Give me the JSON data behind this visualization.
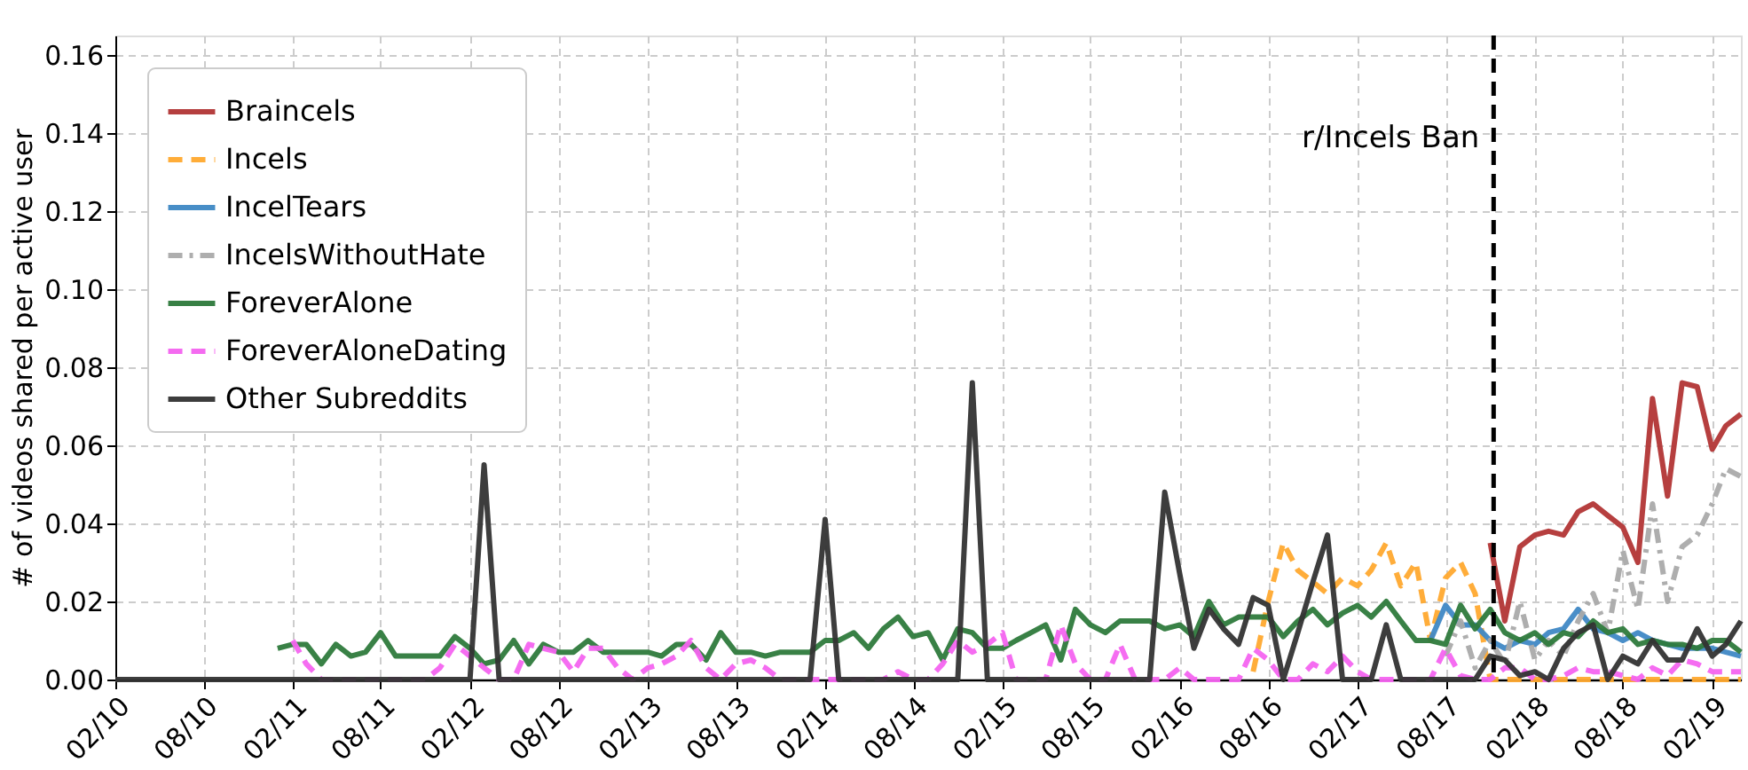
{
  "chart_data": {
    "type": "line",
    "ylabel": "# of videos shared per active user",
    "x": [
      "2010-02",
      "2010-03",
      "2010-04",
      "2010-05",
      "2010-06",
      "2010-07",
      "2010-08",
      "2010-09",
      "2010-10",
      "2010-11",
      "2010-12",
      "2011-01",
      "2011-02",
      "2011-03",
      "2011-04",
      "2011-05",
      "2011-06",
      "2011-07",
      "2011-08",
      "2011-09",
      "2011-10",
      "2011-11",
      "2011-12",
      "2012-01",
      "2012-02",
      "2012-03",
      "2012-04",
      "2012-05",
      "2012-06",
      "2012-07",
      "2012-08",
      "2012-09",
      "2012-10",
      "2012-11",
      "2012-12",
      "2013-01",
      "2013-02",
      "2013-03",
      "2013-04",
      "2013-05",
      "2013-06",
      "2013-07",
      "2013-08",
      "2013-09",
      "2013-10",
      "2013-11",
      "2013-12",
      "2014-01",
      "2014-02",
      "2014-03",
      "2014-04",
      "2014-05",
      "2014-06",
      "2014-07",
      "2014-08",
      "2014-09",
      "2014-10",
      "2014-11",
      "2014-12",
      "2015-01",
      "2015-02",
      "2015-03",
      "2015-04",
      "2015-05",
      "2015-06",
      "2015-07",
      "2015-08",
      "2015-09",
      "2015-10",
      "2015-11",
      "2015-12",
      "2016-01",
      "2016-02",
      "2016-03",
      "2016-04",
      "2016-05",
      "2016-06",
      "2016-07",
      "2016-08",
      "2016-09",
      "2016-10",
      "2016-11",
      "2016-12",
      "2017-01",
      "2017-02",
      "2017-03",
      "2017-04",
      "2017-05",
      "2017-06",
      "2017-07",
      "2017-08",
      "2017-09",
      "2017-10",
      "2017-11",
      "2017-12",
      "2018-01",
      "2018-02",
      "2018-03",
      "2018-04",
      "2018-05",
      "2018-06",
      "2018-07",
      "2018-08",
      "2018-09",
      "2018-10",
      "2018-11",
      "2018-12",
      "2019-01",
      "2019-02",
      "2019-03",
      "2019-04"
    ],
    "series": [
      {
        "name": "Braincels",
        "color": "#b23535",
        "line_style": "solid",
        "values": [
          null,
          null,
          null,
          null,
          null,
          null,
          null,
          null,
          null,
          null,
          null,
          null,
          null,
          null,
          null,
          null,
          null,
          null,
          null,
          null,
          null,
          null,
          null,
          null,
          null,
          null,
          null,
          null,
          null,
          null,
          null,
          null,
          null,
          null,
          null,
          null,
          null,
          null,
          null,
          null,
          null,
          null,
          null,
          null,
          null,
          null,
          null,
          null,
          null,
          null,
          null,
          null,
          null,
          null,
          null,
          null,
          null,
          null,
          null,
          null,
          null,
          null,
          null,
          null,
          null,
          null,
          null,
          null,
          null,
          null,
          null,
          null,
          null,
          null,
          null,
          null,
          null,
          null,
          null,
          null,
          null,
          null,
          null,
          null,
          null,
          null,
          null,
          null,
          null,
          null,
          null,
          null,
          null,
          0.035,
          0.015,
          0.034,
          0.037,
          0.038,
          0.037,
          0.043,
          0.045,
          0.042,
          0.039,
          0.03,
          0.072,
          0.047,
          0.076,
          0.075,
          0.059,
          0.065,
          0.068
        ]
      },
      {
        "name": "Incels",
        "color": "#ffa92f",
        "line_style": "dashed",
        "values": [
          null,
          null,
          null,
          null,
          null,
          null,
          null,
          null,
          null,
          null,
          null,
          null,
          null,
          null,
          null,
          null,
          null,
          null,
          null,
          null,
          null,
          null,
          null,
          null,
          null,
          null,
          null,
          null,
          null,
          null,
          null,
          null,
          null,
          null,
          null,
          null,
          null,
          null,
          null,
          null,
          null,
          null,
          null,
          null,
          null,
          null,
          null,
          null,
          null,
          null,
          null,
          null,
          null,
          null,
          null,
          null,
          null,
          null,
          null,
          null,
          null,
          null,
          null,
          null,
          null,
          null,
          null,
          null,
          null,
          null,
          null,
          null,
          null,
          null,
          null,
          null,
          null,
          0.002,
          0.02,
          0.035,
          0.028,
          0.025,
          0.022,
          0.026,
          0.024,
          0.028,
          0.035,
          0.024,
          0.03,
          0.01,
          0.026,
          0.03,
          0.022,
          0,
          0,
          0,
          0,
          0,
          0,
          0,
          0,
          0,
          0,
          0,
          0,
          0,
          0,
          0,
          0,
          0,
          0
        ]
      },
      {
        "name": "IncelTears",
        "color": "#3f88c5",
        "line_style": "solid",
        "values": [
          null,
          null,
          null,
          null,
          null,
          null,
          null,
          null,
          null,
          null,
          null,
          null,
          null,
          null,
          null,
          null,
          null,
          null,
          null,
          null,
          null,
          null,
          null,
          null,
          null,
          null,
          null,
          null,
          null,
          null,
          null,
          null,
          null,
          null,
          null,
          null,
          null,
          null,
          null,
          null,
          null,
          null,
          null,
          null,
          null,
          null,
          null,
          null,
          null,
          null,
          null,
          null,
          null,
          null,
          null,
          null,
          null,
          null,
          null,
          null,
          null,
          null,
          null,
          null,
          null,
          null,
          null,
          null,
          null,
          null,
          null,
          null,
          null,
          null,
          null,
          null,
          null,
          null,
          null,
          null,
          null,
          null,
          null,
          null,
          null,
          null,
          null,
          null,
          null,
          0.01,
          0.019,
          0.014,
          0.014,
          0.01,
          0.008,
          0.01,
          0.009,
          0.012,
          0.013,
          0.018,
          0.013,
          0.012,
          0.01,
          0.012,
          0.01,
          0.009,
          0.008,
          0.008,
          0.008,
          0.007,
          0.006
        ]
      },
      {
        "name": "IncelsWithoutHate",
        "color": "#aaaaaa",
        "line_style": "dashdot",
        "values": [
          null,
          null,
          null,
          null,
          null,
          null,
          null,
          null,
          null,
          null,
          null,
          null,
          null,
          null,
          null,
          null,
          null,
          null,
          null,
          null,
          null,
          null,
          null,
          null,
          null,
          null,
          null,
          null,
          null,
          null,
          null,
          null,
          null,
          null,
          null,
          null,
          null,
          null,
          null,
          null,
          null,
          null,
          null,
          null,
          null,
          null,
          null,
          null,
          null,
          null,
          null,
          null,
          null,
          null,
          null,
          null,
          null,
          null,
          null,
          null,
          null,
          null,
          null,
          null,
          null,
          null,
          null,
          null,
          null,
          null,
          null,
          null,
          null,
          null,
          null,
          null,
          null,
          null,
          null,
          null,
          null,
          null,
          null,
          null,
          null,
          null,
          null,
          null,
          null,
          null,
          0.006,
          0.015,
          0.003,
          0.01,
          0.004,
          0.02,
          0.005,
          0.01,
          0.006,
          0.015,
          0.022,
          0.012,
          0.033,
          0.018,
          0.045,
          0.02,
          0.034,
          0.037,
          0.045,
          0.054,
          0.052
        ]
      },
      {
        "name": "ForeverAlone",
        "color": "#2e7a3c",
        "line_style": "solid",
        "values": [
          null,
          null,
          null,
          null,
          null,
          null,
          null,
          null,
          null,
          null,
          null,
          0.008,
          0.009,
          0.009,
          0.004,
          0.009,
          0.006,
          0.007,
          0.012,
          0.006,
          0.006,
          0.006,
          0.006,
          0.011,
          0.008,
          0.004,
          0.005,
          0.01,
          0.004,
          0.009,
          0.007,
          0.007,
          0.01,
          0.007,
          0.007,
          0.007,
          0.007,
          0.006,
          0.009,
          0.009,
          0.005,
          0.012,
          0.007,
          0.007,
          0.006,
          0.007,
          0.007,
          0.007,
          0.01,
          0.01,
          0.012,
          0.008,
          0.013,
          0.016,
          0.011,
          0.012,
          0.005,
          0.013,
          0.012,
          0.008,
          0.008,
          0.01,
          0.012,
          0.014,
          0.005,
          0.018,
          0.014,
          0.012,
          0.015,
          0.015,
          0.015,
          0.013,
          0.014,
          0.011,
          0.02,
          0.014,
          0.016,
          0.016,
          0.016,
          0.011,
          0.015,
          0.018,
          0.014,
          0.017,
          0.019,
          0.016,
          0.02,
          0.015,
          0.01,
          0.01,
          0.009,
          0.019,
          0.013,
          0.018,
          0.012,
          0.01,
          0.012,
          0.009,
          0.012,
          0.011,
          0.015,
          0.012,
          0.013,
          0.009,
          0.01,
          0.009,
          0.009,
          0.008,
          0.01,
          0.01,
          0.007
        ]
      },
      {
        "name": "ForeverAloneDating",
        "color": "#f464f0",
        "line_style": "dashed",
        "values": [
          null,
          null,
          null,
          null,
          null,
          null,
          null,
          null,
          null,
          null,
          null,
          null,
          0.01,
          0.004,
          0,
          0,
          0,
          0,
          0,
          0,
          0,
          0,
          0.003,
          0.009,
          0.006,
          0.003,
          0,
          0,
          0.009,
          0.008,
          0.007,
          0.002,
          0.008,
          0.008,
          0.003,
          0,
          0.003,
          0.004,
          0.006,
          0.01,
          0.003,
          0,
          0.004,
          0.005,
          0.003,
          0,
          0,
          0,
          0,
          0,
          0,
          0,
          0,
          0.002,
          0,
          0,
          0.004,
          0.01,
          0.007,
          0.009,
          0.012,
          0,
          0,
          0,
          0.014,
          0.004,
          0,
          0,
          0.009,
          0,
          0,
          0,
          0.003,
          0,
          0,
          0,
          0,
          0.008,
          0.005,
          0,
          0,
          0.004,
          0.002,
          0.006,
          0.002,
          0,
          0,
          0,
          0,
          0,
          0.008,
          0.001,
          0,
          0,
          0.003,
          0.003,
          0,
          0,
          0.001,
          0.003,
          0.002,
          0.002,
          0.001,
          0,
          0.003,
          0.001,
          0.005,
          0.004,
          0.002,
          0.002,
          0.002
        ]
      },
      {
        "name": "Other Subreddits",
        "color": "#333333",
        "line_style": "solid",
        "values": [
          0,
          0,
          0,
          0,
          0,
          0,
          0,
          0,
          0,
          0,
          0,
          0,
          0,
          0,
          0,
          0,
          0,
          0,
          0,
          0,
          0,
          0,
          0,
          0,
          0,
          0.055,
          0,
          0,
          0,
          0,
          0,
          0,
          0,
          0,
          0,
          0,
          0,
          0,
          0,
          0,
          0,
          0,
          0,
          0,
          0,
          0,
          0,
          0,
          0.041,
          0,
          0,
          0,
          0,
          0,
          0,
          0,
          0,
          0,
          0.076,
          0,
          0,
          0,
          0,
          0,
          0,
          0,
          0,
          0,
          0,
          0,
          0,
          0.048,
          0.027,
          0.008,
          0.018,
          0.013,
          0.009,
          0.021,
          0.019,
          0,
          0.012,
          0.025,
          0.037,
          0,
          0,
          0,
          0.014,
          0,
          0,
          0,
          0,
          0,
          0,
          0.006,
          0.005,
          0.001,
          0.002,
          0,
          0.008,
          0.012,
          0.014,
          0,
          0.006,
          0.004,
          0.01,
          0.005,
          0.005,
          0.013,
          0.006,
          0.009,
          0.015
        ]
      }
    ],
    "xlim": [
      "2010-02",
      "2019-04"
    ],
    "xticks": [
      {
        "value": "2010-02",
        "label": "02/10"
      },
      {
        "value": "2010-08",
        "label": "08/10"
      },
      {
        "value": "2011-02",
        "label": "02/11"
      },
      {
        "value": "2011-08",
        "label": "08/11"
      },
      {
        "value": "2012-02",
        "label": "02/12"
      },
      {
        "value": "2012-08",
        "label": "08/12"
      },
      {
        "value": "2013-02",
        "label": "02/13"
      },
      {
        "value": "2013-08",
        "label": "08/13"
      },
      {
        "value": "2014-02",
        "label": "02/14"
      },
      {
        "value": "2014-08",
        "label": "08/14"
      },
      {
        "value": "2015-02",
        "label": "02/15"
      },
      {
        "value": "2015-08",
        "label": "08/15"
      },
      {
        "value": "2016-02",
        "label": "02/16"
      },
      {
        "value": "2016-08",
        "label": "08/16"
      },
      {
        "value": "2017-02",
        "label": "02/17"
      },
      {
        "value": "2017-08",
        "label": "08/17"
      },
      {
        "value": "2018-02",
        "label": "02/18"
      },
      {
        "value": "2018-08",
        "label": "08/18"
      },
      {
        "value": "2019-02",
        "label": "02/19"
      }
    ],
    "ylim": [
      0,
      0.165
    ],
    "yticks": [
      {
        "value": 0,
        "label": "0.00"
      },
      {
        "value": 0.02,
        "label": "0.02"
      },
      {
        "value": 0.04,
        "label": "0.04"
      },
      {
        "value": 0.06,
        "label": "0.06"
      },
      {
        "value": 0.08,
        "label": "0.08"
      },
      {
        "value": 0.1,
        "label": "0.10"
      },
      {
        "value": 0.12,
        "label": "0.12"
      },
      {
        "value": 0.14,
        "label": "0.14"
      },
      {
        "value": 0.16,
        "label": "0.16"
      }
    ],
    "ref_lines": [
      {
        "axis": "x",
        "value": "2017-11-08",
        "label": "r/Incels Ban",
        "color": "#000000",
        "line_style": "dashed"
      }
    ],
    "grid": true,
    "legend": "top left",
    "marker": "none"
  }
}
